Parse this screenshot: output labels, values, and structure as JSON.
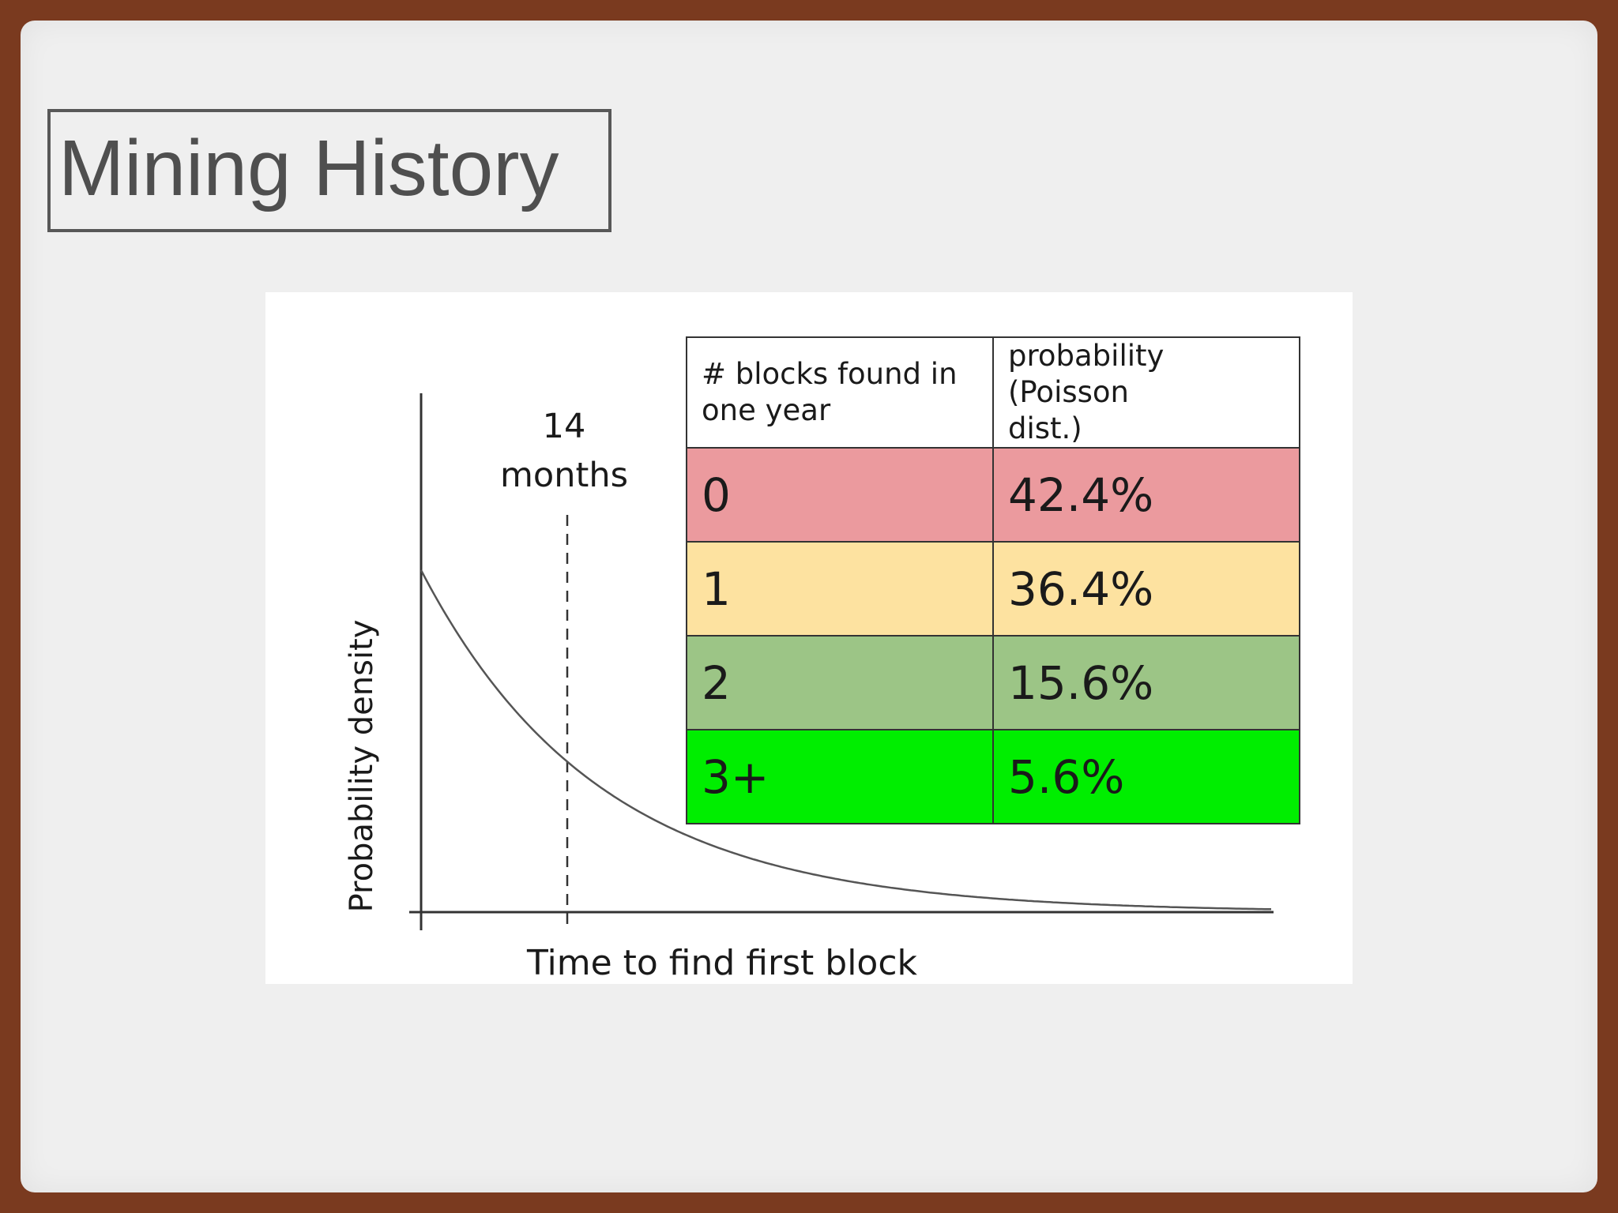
{
  "slide": {
    "title": "Mining History"
  },
  "chart_data": {
    "type": "line",
    "series": [
      {
        "x": [
          0,
          1,
          2,
          3,
          4,
          5,
          6
        ],
        "y": [
          1.0,
          0.44,
          0.19,
          0.085,
          0.037,
          0.016,
          0.007
        ]
      }
    ],
    "xlabel": "Time to find first block",
    "ylabel": "Probability density",
    "annotation": {
      "line1": "14",
      "line2": "months",
      "x": 1
    },
    "grid": false
  },
  "table": {
    "headers": [
      "# blocks found in one year",
      "probability (Poisson dist.)"
    ],
    "header_lines": [
      [
        "# blocks found in",
        "one year"
      ],
      [
        "probability (Poisson",
        "dist.)"
      ]
    ],
    "rows": [
      {
        "blocks": "0",
        "probability": "42.4%",
        "color": "#eb9a9e"
      },
      {
        "blocks": "1",
        "probability": "36.4%",
        "color": "#fde2a0"
      },
      {
        "blocks": "2",
        "probability": "15.6%",
        "color": "#9cc586"
      },
      {
        "blocks": "3+",
        "probability": "5.6%",
        "color": "#00ee00"
      }
    ]
  },
  "colors": {
    "frame": "#7a3a1f",
    "slide_background": "#efefef",
    "title_text": "#4f4f4f",
    "curve": "#555555"
  }
}
